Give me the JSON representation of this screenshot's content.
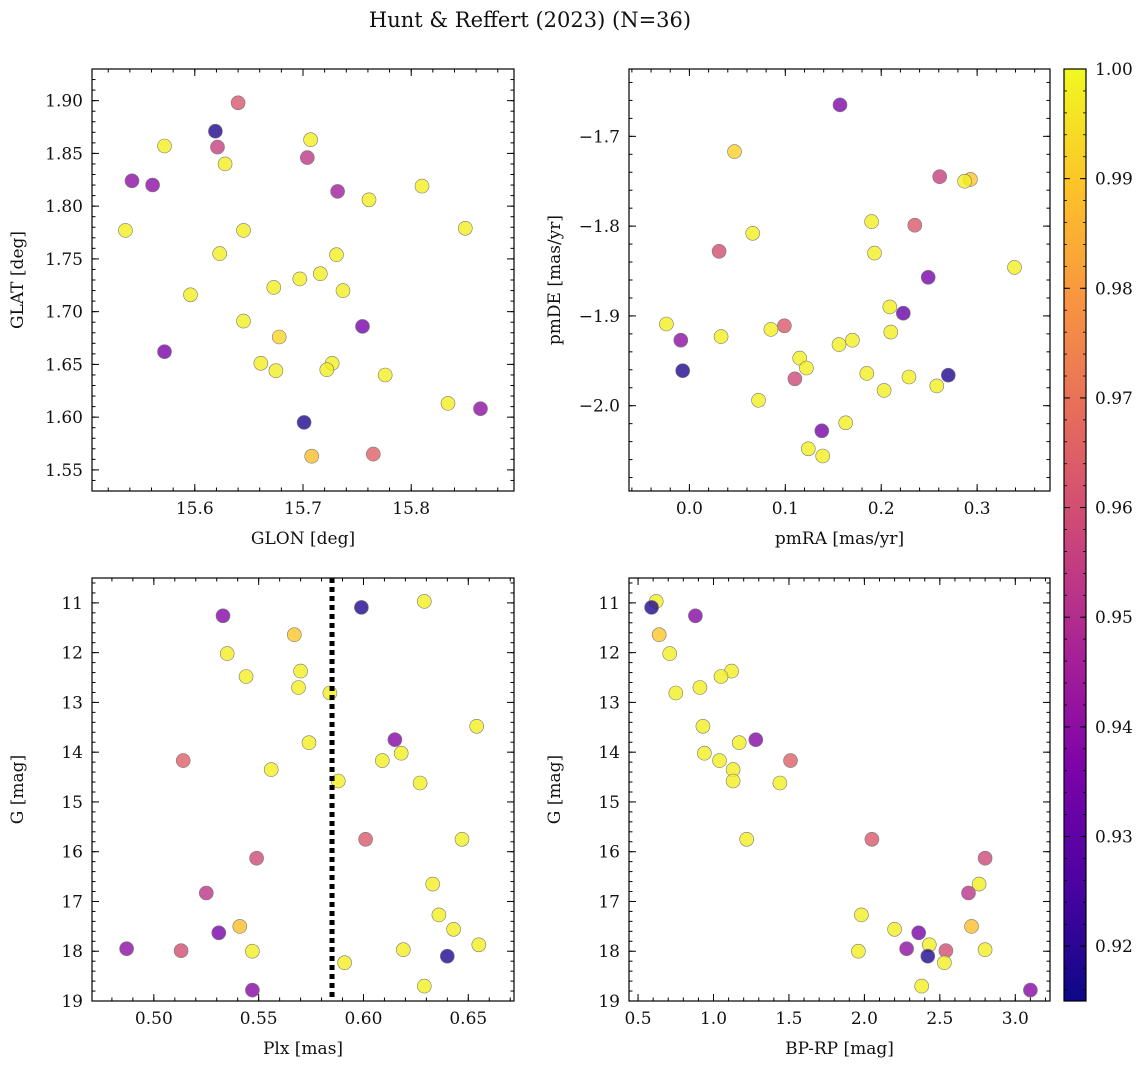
{
  "figure": {
    "title": "Hunt & Reffert (2023) (N=36)"
  },
  "chart_data": [
    {
      "type": "scatter",
      "xlabel": "GLON [deg]",
      "ylabel": "GLAT [deg]",
      "xlim": [
        15.505,
        15.895
      ],
      "ylim": [
        1.53,
        1.93
      ],
      "xticks": [
        15.6,
        15.7,
        15.8
      ],
      "xtick_labels": [
        "15.6",
        "15.7",
        "15.8"
      ],
      "yticks": [
        1.55,
        1.6,
        1.65,
        1.7,
        1.75,
        1.8,
        1.85,
        1.9
      ],
      "ytick_labels": [
        "1.55",
        "1.60",
        "1.65",
        "1.70",
        "1.75",
        "1.80",
        "1.85",
        "1.90"
      ],
      "y_inverted": false,
      "points": [
        {
          "x": 15.64,
          "y": 1.898,
          "c": 0.962
        },
        {
          "x": 15.619,
          "y": 1.871,
          "c": 0.918
        },
        {
          "x": 15.707,
          "y": 1.863,
          "c": 0.998
        },
        {
          "x": 15.572,
          "y": 1.857,
          "c": 0.998
        },
        {
          "x": 15.621,
          "y": 1.856,
          "c": 0.955
        },
        {
          "x": 15.704,
          "y": 1.846,
          "c": 0.953
        },
        {
          "x": 15.628,
          "y": 1.84,
          "c": 0.998
        },
        {
          "x": 15.542,
          "y": 1.824,
          "c": 0.94
        },
        {
          "x": 15.561,
          "y": 1.82,
          "c": 0.94
        },
        {
          "x": 15.81,
          "y": 1.819,
          "c": 0.998
        },
        {
          "x": 15.732,
          "y": 1.814,
          "c": 0.945
        },
        {
          "x": 15.761,
          "y": 1.806,
          "c": 0.998
        },
        {
          "x": 15.85,
          "y": 1.779,
          "c": 0.998
        },
        {
          "x": 15.536,
          "y": 1.777,
          "c": 0.998
        },
        {
          "x": 15.645,
          "y": 1.777,
          "c": 0.998
        },
        {
          "x": 15.623,
          "y": 1.755,
          "c": 0.998
        },
        {
          "x": 15.731,
          "y": 1.754,
          "c": 0.998
        },
        {
          "x": 15.716,
          "y": 1.736,
          "c": 0.998
        },
        {
          "x": 15.697,
          "y": 1.731,
          "c": 0.998
        },
        {
          "x": 15.673,
          "y": 1.723,
          "c": 0.998
        },
        {
          "x": 15.737,
          "y": 1.72,
          "c": 0.998
        },
        {
          "x": 15.596,
          "y": 1.716,
          "c": 0.998
        },
        {
          "x": 15.645,
          "y": 1.691,
          "c": 0.998
        },
        {
          "x": 15.755,
          "y": 1.686,
          "c": 0.935
        },
        {
          "x": 15.678,
          "y": 1.676,
          "c": 0.993
        },
        {
          "x": 15.572,
          "y": 1.662,
          "c": 0.935
        },
        {
          "x": 15.661,
          "y": 1.651,
          "c": 0.998
        },
        {
          "x": 15.727,
          "y": 1.651,
          "c": 0.998
        },
        {
          "x": 15.722,
          "y": 1.645,
          "c": 0.998
        },
        {
          "x": 15.675,
          "y": 1.644,
          "c": 0.998
        },
        {
          "x": 15.776,
          "y": 1.64,
          "c": 0.998
        },
        {
          "x": 15.834,
          "y": 1.613,
          "c": 0.998
        },
        {
          "x": 15.864,
          "y": 1.608,
          "c": 0.94
        },
        {
          "x": 15.701,
          "y": 1.595,
          "c": 0.918
        },
        {
          "x": 15.765,
          "y": 1.565,
          "c": 0.965
        },
        {
          "x": 15.708,
          "y": 1.563,
          "c": 0.988
        }
      ]
    },
    {
      "type": "scatter",
      "xlabel": "pmRA [mas/yr]",
      "ylabel": "pmDE [mas/yr]",
      "xlim": [
        -0.063,
        0.376
      ],
      "ylim": [
        -2.095,
        -1.625
      ],
      "xticks": [
        0.0,
        0.1,
        0.2,
        0.3
      ],
      "xtick_labels": [
        "0.0",
        "0.1",
        "0.2",
        "0.3"
      ],
      "yticks": [
        -2.0,
        -1.9,
        -1.8,
        -1.7
      ],
      "ytick_labels": [
        "−2.0",
        "−1.9",
        "−1.8",
        "−1.7"
      ],
      "y_inverted": false,
      "points": [
        {
          "x": 0.157,
          "y": -1.665,
          "c": 0.937
        },
        {
          "x": 0.047,
          "y": -1.717,
          "c": 0.992
        },
        {
          "x": 0.261,
          "y": -1.745,
          "c": 0.955
        },
        {
          "x": 0.293,
          "y": -1.748,
          "c": 0.99
        },
        {
          "x": 0.287,
          "y": -1.75,
          "c": 0.998
        },
        {
          "x": 0.19,
          "y": -1.795,
          "c": 0.998
        },
        {
          "x": 0.235,
          "y": -1.799,
          "c": 0.963
        },
        {
          "x": 0.066,
          "y": -1.808,
          "c": 0.998
        },
        {
          "x": 0.193,
          "y": -1.83,
          "c": 0.998
        },
        {
          "x": 0.031,
          "y": -1.828,
          "c": 0.96
        },
        {
          "x": 0.339,
          "y": -1.846,
          "c": 0.998
        },
        {
          "x": 0.249,
          "y": -1.857,
          "c": 0.935
        },
        {
          "x": 0.209,
          "y": -1.89,
          "c": 0.998
        },
        {
          "x": 0.223,
          "y": -1.897,
          "c": 0.932
        },
        {
          "x": -0.024,
          "y": -1.909,
          "c": 0.998
        },
        {
          "x": 0.099,
          "y": -1.911,
          "c": 0.963
        },
        {
          "x": 0.085,
          "y": -1.915,
          "c": 0.998
        },
        {
          "x": 0.21,
          "y": -1.918,
          "c": 0.998
        },
        {
          "x": 0.033,
          "y": -1.923,
          "c": 0.998
        },
        {
          "x": -0.009,
          "y": -1.927,
          "c": 0.94
        },
        {
          "x": 0.17,
          "y": -1.927,
          "c": 0.998
        },
        {
          "x": 0.156,
          "y": -1.932,
          "c": 0.998
        },
        {
          "x": 0.115,
          "y": -1.947,
          "c": 0.998
        },
        {
          "x": 0.122,
          "y": -1.958,
          "c": 0.998
        },
        {
          "x": -0.007,
          "y": -1.961,
          "c": 0.918
        },
        {
          "x": 0.185,
          "y": -1.964,
          "c": 0.998
        },
        {
          "x": 0.229,
          "y": -1.968,
          "c": 0.998
        },
        {
          "x": 0.27,
          "y": -1.966,
          "c": 0.918
        },
        {
          "x": 0.11,
          "y": -1.97,
          "c": 0.958
        },
        {
          "x": 0.258,
          "y": -1.978,
          "c": 0.998
        },
        {
          "x": 0.203,
          "y": -1.983,
          "c": 0.998
        },
        {
          "x": 0.072,
          "y": -1.994,
          "c": 0.998
        },
        {
          "x": 0.163,
          "y": -2.019,
          "c": 0.998
        },
        {
          "x": 0.138,
          "y": -2.028,
          "c": 0.935
        },
        {
          "x": 0.124,
          "y": -2.048,
          "c": 0.998
        },
        {
          "x": 0.139,
          "y": -2.056,
          "c": 0.998
        }
      ]
    },
    {
      "type": "scatter",
      "xlabel": "Plx [mas]",
      "ylabel": "G [mag]",
      "xlim": [
        0.4705,
        0.6718
      ],
      "ylim": [
        19.0,
        10.5
      ],
      "xticks": [
        0.5,
        0.55,
        0.6,
        0.65
      ],
      "xtick_labels": [
        "0.50",
        "0.55",
        "0.60",
        "0.65"
      ],
      "yticks": [
        11,
        12,
        13,
        14,
        15,
        16,
        17,
        18,
        19
      ],
      "ytick_labels": [
        "11",
        "12",
        "13",
        "14",
        "15",
        "16",
        "17",
        "18",
        "19"
      ],
      "y_inverted": true,
      "vline": 0.585,
      "points": [
        {
          "x": 0.629,
          "y": 10.97,
          "c": 0.998
        },
        {
          "x": 0.599,
          "y": 11.09,
          "c": 0.918
        },
        {
          "x": 0.533,
          "y": 11.26,
          "c": 0.938
        },
        {
          "x": 0.567,
          "y": 11.64,
          "c": 0.99
        },
        {
          "x": 0.535,
          "y": 12.02,
          "c": 0.998
        },
        {
          "x": 0.57,
          "y": 12.37,
          "c": 0.998
        },
        {
          "x": 0.544,
          "y": 12.48,
          "c": 0.998
        },
        {
          "x": 0.569,
          "y": 12.7,
          "c": 0.998
        },
        {
          "x": 0.584,
          "y": 12.81,
          "c": 0.998
        },
        {
          "x": 0.654,
          "y": 13.48,
          "c": 0.998
        },
        {
          "x": 0.615,
          "y": 13.75,
          "c": 0.938
        },
        {
          "x": 0.574,
          "y": 13.81,
          "c": 0.998
        },
        {
          "x": 0.618,
          "y": 14.02,
          "c": 0.998
        },
        {
          "x": 0.514,
          "y": 14.17,
          "c": 0.965
        },
        {
          "x": 0.609,
          "y": 14.17,
          "c": 0.998
        },
        {
          "x": 0.556,
          "y": 14.35,
          "c": 0.998
        },
        {
          "x": 0.588,
          "y": 14.58,
          "c": 0.998
        },
        {
          "x": 0.627,
          "y": 14.62,
          "c": 0.998
        },
        {
          "x": 0.601,
          "y": 15.75,
          "c": 0.963
        },
        {
          "x": 0.647,
          "y": 15.75,
          "c": 0.998
        },
        {
          "x": 0.549,
          "y": 16.13,
          "c": 0.958
        },
        {
          "x": 0.633,
          "y": 16.65,
          "c": 0.998
        },
        {
          "x": 0.525,
          "y": 16.83,
          "c": 0.952
        },
        {
          "x": 0.636,
          "y": 17.27,
          "c": 0.998
        },
        {
          "x": 0.541,
          "y": 17.5,
          "c": 0.988
        },
        {
          "x": 0.643,
          "y": 17.56,
          "c": 0.998
        },
        {
          "x": 0.531,
          "y": 17.63,
          "c": 0.935
        },
        {
          "x": 0.655,
          "y": 17.87,
          "c": 0.998
        },
        {
          "x": 0.487,
          "y": 17.95,
          "c": 0.94
        },
        {
          "x": 0.619,
          "y": 17.97,
          "c": 0.998
        },
        {
          "x": 0.513,
          "y": 17.99,
          "c": 0.96
        },
        {
          "x": 0.547,
          "y": 18.0,
          "c": 0.998
        },
        {
          "x": 0.64,
          "y": 18.1,
          "c": 0.918
        },
        {
          "x": 0.591,
          "y": 18.23,
          "c": 0.998
        },
        {
          "x": 0.629,
          "y": 18.7,
          "c": 0.998
        },
        {
          "x": 0.547,
          "y": 18.78,
          "c": 0.938
        }
      ]
    },
    {
      "type": "scatter",
      "xlabel": "BP-RP [mag]",
      "ylabel": "G [mag]",
      "xlim": [
        0.44,
        3.23
      ],
      "ylim": [
        19.0,
        10.5
      ],
      "xticks": [
        0.5,
        1.0,
        1.5,
        2.0,
        2.5,
        3.0
      ],
      "xtick_labels": [
        "0.5",
        "1.0",
        "1.5",
        "2.0",
        "2.5",
        "3.0"
      ],
      "yticks": [
        11,
        12,
        13,
        14,
        15,
        16,
        17,
        18,
        19
      ],
      "ytick_labels": [
        "11",
        "12",
        "13",
        "14",
        "15",
        "16",
        "17",
        "18",
        "19"
      ],
      "y_inverted": true,
      "points": [
        {
          "x": 0.62,
          "y": 10.97,
          "c": 0.998
        },
        {
          "x": 0.59,
          "y": 11.09,
          "c": 0.918
        },
        {
          "x": 0.88,
          "y": 11.26,
          "c": 0.938
        },
        {
          "x": 0.64,
          "y": 11.64,
          "c": 0.99
        },
        {
          "x": 0.71,
          "y": 12.02,
          "c": 0.998
        },
        {
          "x": 1.12,
          "y": 12.37,
          "c": 0.998
        },
        {
          "x": 1.05,
          "y": 12.48,
          "c": 0.998
        },
        {
          "x": 0.91,
          "y": 12.7,
          "c": 0.998
        },
        {
          "x": 0.75,
          "y": 12.81,
          "c": 0.998
        },
        {
          "x": 0.93,
          "y": 13.48,
          "c": 0.998
        },
        {
          "x": 1.28,
          "y": 13.75,
          "c": 0.938
        },
        {
          "x": 1.17,
          "y": 13.81,
          "c": 0.998
        },
        {
          "x": 0.94,
          "y": 14.02,
          "c": 0.998
        },
        {
          "x": 1.51,
          "y": 14.17,
          "c": 0.965
        },
        {
          "x": 1.04,
          "y": 14.17,
          "c": 0.998
        },
        {
          "x": 1.13,
          "y": 14.35,
          "c": 0.998
        },
        {
          "x": 1.13,
          "y": 14.58,
          "c": 0.998
        },
        {
          "x": 1.44,
          "y": 14.62,
          "c": 0.998
        },
        {
          "x": 2.05,
          "y": 15.75,
          "c": 0.963
        },
        {
          "x": 1.22,
          "y": 15.75,
          "c": 0.998
        },
        {
          "x": 2.8,
          "y": 16.13,
          "c": 0.958
        },
        {
          "x": 2.76,
          "y": 16.65,
          "c": 0.998
        },
        {
          "x": 2.69,
          "y": 16.83,
          "c": 0.952
        },
        {
          "x": 1.98,
          "y": 17.27,
          "c": 0.998
        },
        {
          "x": 2.71,
          "y": 17.5,
          "c": 0.988
        },
        {
          "x": 2.2,
          "y": 17.56,
          "c": 0.998
        },
        {
          "x": 2.36,
          "y": 17.63,
          "c": 0.935
        },
        {
          "x": 2.43,
          "y": 17.87,
          "c": 0.998
        },
        {
          "x": 2.28,
          "y": 17.95,
          "c": 0.94
        },
        {
          "x": 2.8,
          "y": 17.97,
          "c": 0.998
        },
        {
          "x": 2.54,
          "y": 17.99,
          "c": 0.96
        },
        {
          "x": 1.96,
          "y": 18.0,
          "c": 0.998
        },
        {
          "x": 2.42,
          "y": 18.1,
          "c": 0.918
        },
        {
          "x": 2.53,
          "y": 18.23,
          "c": 0.998
        },
        {
          "x": 2.38,
          "y": 18.7,
          "c": 0.998
        },
        {
          "x": 3.1,
          "y": 18.78,
          "c": 0.938
        }
      ]
    }
  ],
  "colorbar": {
    "colormap": "plasma",
    "range": [
      0.915,
      1.0
    ],
    "ticks": [
      0.92,
      0.93,
      0.94,
      0.95,
      0.96,
      0.97,
      0.98,
      0.99,
      1.0
    ],
    "tick_labels": [
      "0.92",
      "0.93",
      "0.94",
      "0.95",
      "0.96",
      "0.97",
      "0.98",
      "0.99",
      "1.00"
    ]
  },
  "style": {
    "marker_edge": "#7a7a7a",
    "marker_alpha": 0.8,
    "vline_color": "#000000"
  }
}
